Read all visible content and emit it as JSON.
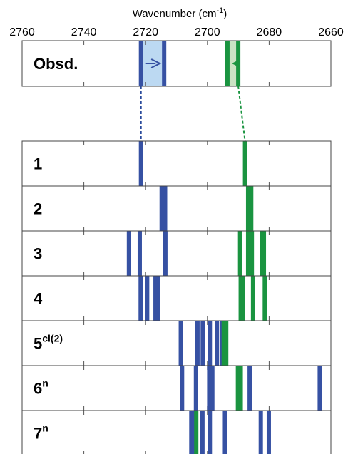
{
  "chart_data": {
    "type": "stick spectrum",
    "xlabel": "Wavenumber (cm",
    "xlabel_sup": "-1",
    "xlabel_close": ")",
    "xlim": [
      2760,
      2660
    ],
    "x_reversed": true,
    "xticks": [
      2760,
      2740,
      2720,
      2700,
      2680,
      2660
    ],
    "xtick_labels": [
      "2760",
      "2740",
      "2720",
      "2700",
      "2680",
      "2660"
    ],
    "colors": {
      "blue": "#3651a3",
      "green": "#1a9440",
      "blue_shade": "#bcd9f2",
      "green_shade": "#cbe3c4",
      "dotted": "#2a4a9c"
    },
    "observed": {
      "label": "Obsd.",
      "blue": {
        "from": 2721.5,
        "to": 2714.0
      },
      "green": {
        "from": 2690.0,
        "to": 2693.5
      }
    },
    "panels": [
      {
        "label": "1",
        "sup": "",
        "blue": [
          2721.5
        ],
        "green": [
          2687.8
        ]
      },
      {
        "label": "2",
        "sup": "",
        "blue": [
          2714.8,
          2713.7
        ],
        "green": [
          2686.8,
          2685.8
        ]
      },
      {
        "label": "3",
        "sup": "",
        "blue": [
          2725.4,
          2721.9,
          2713.6
        ],
        "green": [
          2689.4,
          2686.8,
          2685.6,
          2682.4,
          2681.7
        ]
      },
      {
        "label": "4",
        "sup": "",
        "blue": [
          2721.6,
          2719.5,
          2716.8,
          2716.0
        ],
        "green": [
          2689.2,
          2688.5,
          2685.2,
          2681.4
        ]
      },
      {
        "label": "5",
        "sup": "cl(2)",
        "blue": [
          2708.6,
          2703.2,
          2701.5,
          2699.2,
          2696.9,
          2695.2
        ],
        "green": [
          2694.7,
          2693.9
        ]
      },
      {
        "label": "6",
        "sup": "n",
        "blue": [
          2708.2,
          2703.7,
          2699.4,
          2698.4,
          2686.3,
          2663.6
        ],
        "green": [
          2690.1,
          2689.7,
          2689.2
        ]
      },
      {
        "label": "7",
        "sup": "n",
        "blue": [
          2705.2,
          2704.5,
          2701.6,
          2699.2,
          2694.3,
          2682.7,
          2680.1
        ],
        "green": [
          2703.6
        ]
      }
    ]
  }
}
